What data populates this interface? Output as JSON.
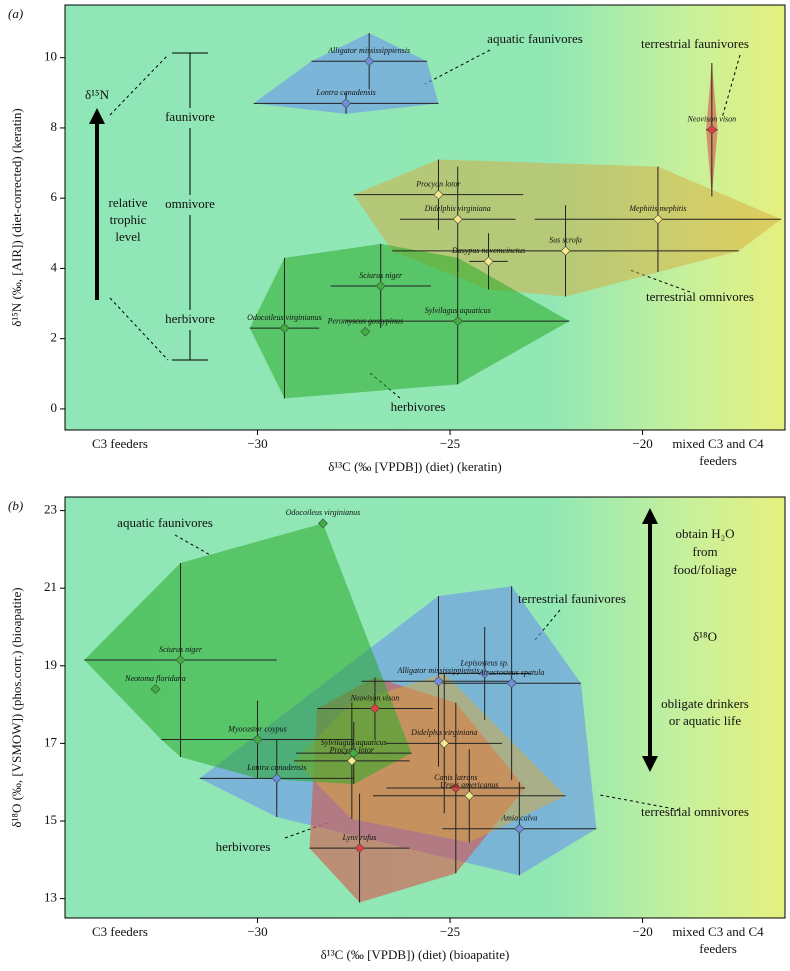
{
  "chart_data": [
    {
      "type": "scatter",
      "panel_label": "(a)",
      "xlabel": "δ¹³C (‰ [VPDB]) (diet) (keratin)",
      "ylabel": "δ¹⁵N (‰, [AIR]) (diet-corrected) (keratin)",
      "xlim": [
        -35,
        -16.3
      ],
      "ylim": [
        -0.6,
        11.5
      ],
      "xticks": [
        {
          "value": -30,
          "label": "−30"
        },
        {
          "value": -25,
          "label": "−25"
        },
        {
          "value": -20,
          "label": "−20"
        }
      ],
      "yticks": [
        0,
        2,
        4,
        6,
        8,
        10
      ],
      "annotations": [
        "δ¹⁵N",
        "relative",
        "trophic",
        "level",
        "faunivore",
        "omnivore",
        "herbivore",
        "C3 feeders",
        "mixed C3 and C4",
        "feeders"
      ],
      "series": [
        {
          "name": "aquatic faunivores",
          "color": "#6f8fe0",
          "labels": [
            "Alligator mississippiensis",
            "Lontra canadensis"
          ],
          "x": [
            -27.1,
            -27.7
          ],
          "values": [
            9.9,
            8.7
          ],
          "xerr": [
            1.5,
            2.4
          ],
          "yerr": [
            0.8,
            0.3
          ]
        },
        {
          "name": "terrestrial faunivores",
          "color": "#e04040",
          "labels": [
            "Neovison vison"
          ],
          "x": [
            -18.2
          ],
          "values": [
            7.95
          ],
          "xerr": [
            0.15
          ],
          "yerr": [
            1.9
          ]
        },
        {
          "name": "terrestrial omnivores",
          "color": "#f5eb8a",
          "labels": [
            "Procyon lotor",
            "Didelphis virginiana",
            "Mephitis mephitis",
            "Sus scrofa",
            "Dasypus novemcinctus"
          ],
          "x": [
            -25.3,
            -24.8,
            -19.6,
            -22.0,
            -24.0
          ],
          "values": [
            6.1,
            5.4,
            5.4,
            4.5,
            4.2
          ],
          "xerr": [
            2.2,
            1.5,
            3.2,
            4.5,
            0.5
          ],
          "yerr": [
            1.0,
            1.5,
            1.5,
            1.3,
            0.8
          ]
        },
        {
          "name": "herbivores",
          "color": "#3fae3f",
          "labels": [
            "Sciurus niger",
            "Sylvilagus aquaticus",
            "Odocoileus virginianus",
            "Peromyscus gossypinus"
          ],
          "x": [
            -26.8,
            -24.8,
            -29.3,
            -27.2
          ],
          "values": [
            3.5,
            2.5,
            2.3,
            2.2
          ],
          "xerr": [
            1.3,
            2.9,
            0.9,
            0
          ],
          "yerr": [
            1.2,
            1.8,
            2.0,
            0
          ]
        }
      ]
    },
    {
      "type": "scatter",
      "panel_label": "(b)",
      "xlabel": "δ¹³C (‰ [VPDB]) (diet) (bioapatite)",
      "ylabel": "δ¹⁸O (‰, [VSMOW]) (phos.corr.) (bioapatite)",
      "xlim": [
        -35,
        -16.3
      ],
      "ylim": [
        12.5,
        23.35
      ],
      "xticks": [
        {
          "value": -30,
          "label": "−30"
        },
        {
          "value": -25,
          "label": "−25"
        },
        {
          "value": -20,
          "label": "−20"
        }
      ],
      "yticks": [
        13,
        15,
        17,
        19,
        21,
        23
      ],
      "annotations": [
        "obtain H₂O",
        "from",
        "food/foliage",
        "δ¹⁸O",
        "obligate drinkers",
        "or aquatic life",
        "C3 feeders",
        "mixed C3 and C4",
        "feeders"
      ],
      "series": [
        {
          "name": "aquatic faunivores",
          "color": "#6f8fe0",
          "labels": [
            "Lontra canadensis",
            "Alligator mississippiensis",
            "Lepisosteus sp.",
            "Atractosteus spatula",
            "Amia calva"
          ],
          "x": [
            -29.5,
            -25.3,
            -24.1,
            -23.4,
            -23.2
          ],
          "values": [
            16.1,
            18.6,
            18.8,
            18.55,
            14.8
          ],
          "xerr": [
            2.0,
            2.0,
            1.2,
            1.8,
            2.0
          ],
          "yerr": [
            1.0,
            2.2,
            1.2,
            2.5,
            1.2
          ]
        },
        {
          "name": "terrestrial faunivores",
          "color": "#e04040",
          "labels": [
            "Neovison vison",
            "Canis latrans",
            "Lynx rufus"
          ],
          "x": [
            -26.95,
            -24.85,
            -27.35
          ],
          "values": [
            17.9,
            15.85,
            14.3
          ],
          "xerr": [
            1.5,
            1.8,
            1.3
          ],
          "yerr": [
            0.8,
            2.2,
            1.4
          ]
        },
        {
          "name": "terrestrial omnivores",
          "color": "#f5eb8a",
          "labels": [
            "Didelphis virginiana",
            "Procyon lotor",
            "Ursus americanus"
          ],
          "x": [
            -25.15,
            -27.55,
            -24.5
          ],
          "values": [
            17.0,
            16.55,
            15.65
          ],
          "xerr": [
            1.5,
            1.5,
            2.5
          ],
          "yerr": [
            1.8,
            1.5,
            1.2
          ]
        },
        {
          "name": "herbivores",
          "color": "#3fae3f",
          "labels": [
            "Odocoileus virginianus",
            "Sciurus niger",
            "Neotoma floridana",
            "Myocastor coypus",
            "Sylvilagus aquaticus"
          ],
          "x": [
            -28.3,
            -32.0,
            -32.65,
            -30.0,
            -27.5
          ],
          "values": [
            22.67,
            19.15,
            18.4,
            17.1,
            16.75
          ],
          "xerr": [
            0,
            2.5,
            0,
            2.5,
            1.5
          ],
          "yerr": [
            0,
            2.5,
            0,
            1.0,
            0.8
          ]
        }
      ]
    }
  ]
}
